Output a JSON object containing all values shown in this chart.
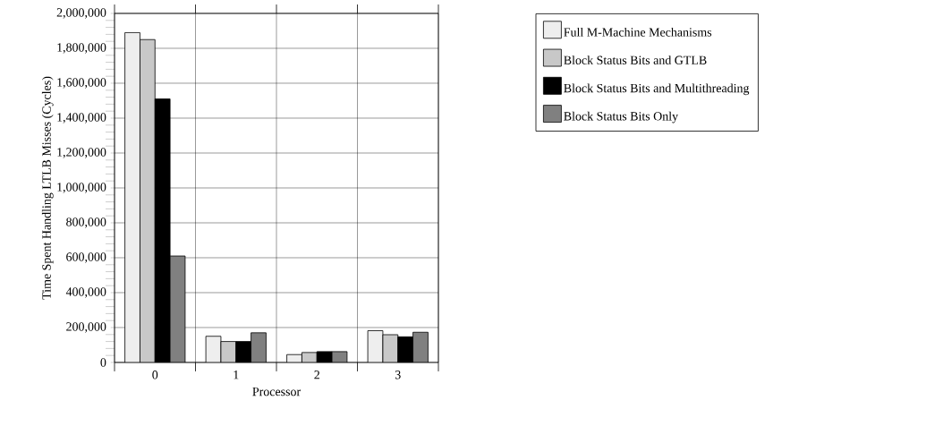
{
  "chart_data": {
    "type": "bar",
    "xlabel": "Processor",
    "ylabel": "Time Spent Handling LTLB Misses (Cycles)",
    "categories": [
      "0",
      "1",
      "2",
      "3"
    ],
    "series": [
      {
        "name": "Full M-Machine Mechanisms",
        "color": "#eeeeee",
        "values": [
          1890000,
          150000,
          45000,
          182000
        ]
      },
      {
        "name": "Block Status Bits and GTLB",
        "color": "#c8c8c8",
        "values": [
          1850000,
          120000,
          57000,
          159000
        ]
      },
      {
        "name": "Block Status Bits and Multithreading",
        "color": "#000000",
        "values": [
          1510000,
          120000,
          62000,
          147000
        ]
      },
      {
        "name": "Block Status Bits Only",
        "color": "#808080",
        "values": [
          610000,
          170000,
          62000,
          173000
        ]
      }
    ],
    "ylim": [
      0,
      2000000
    ],
    "yticks": [
      {
        "value": 0,
        "label": "0"
      },
      {
        "value": 200000,
        "label": "200,000"
      },
      {
        "value": 400000,
        "label": "400,000"
      },
      {
        "value": 600000,
        "label": "600,000"
      },
      {
        "value": 800000,
        "label": "800,000"
      },
      {
        "value": 1000000,
        "label": "1,000,000"
      },
      {
        "value": 1200000,
        "label": "1,200,000"
      },
      {
        "value": 1400000,
        "label": "1,400,000"
      },
      {
        "value": 1600000,
        "label": "1,600,000"
      },
      {
        "value": 1800000,
        "label": "1,800,000"
      },
      {
        "value": 2000000,
        "label": "2,000,000"
      }
    ],
    "grid": true,
    "legend": "top right"
  }
}
